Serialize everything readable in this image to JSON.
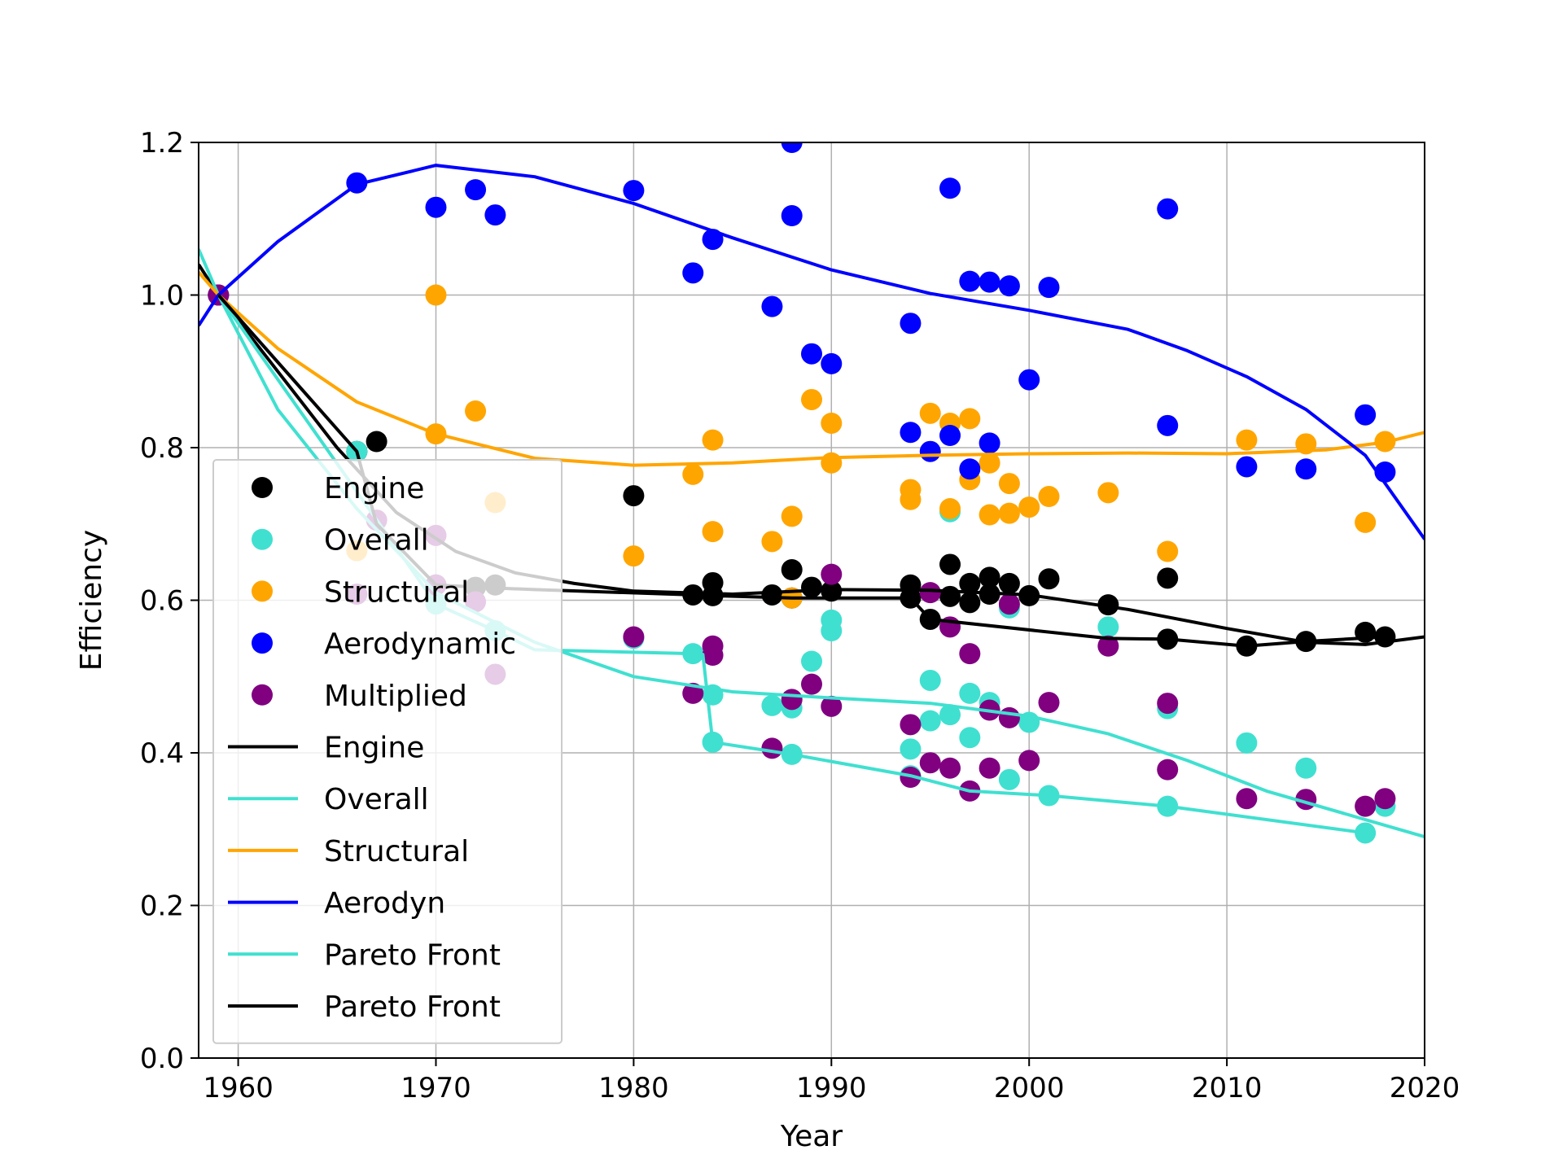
{
  "chart_data": {
    "type": "scatter",
    "title": "",
    "xlabel": "Year",
    "ylabel": "Efficiency",
    "xlim": [
      1958,
      2020
    ],
    "ylim": [
      0.0,
      1.2
    ],
    "xticks": [
      1960,
      1970,
      1980,
      1990,
      2000,
      2010,
      2020
    ],
    "yticks": [
      0.0,
      0.2,
      0.4,
      0.6,
      0.8,
      1.0,
      1.2
    ],
    "xtick_labels": [
      "1960",
      "1970",
      "1980",
      "1990",
      "2000",
      "2010",
      "2020"
    ],
    "ytick_labels": [
      "0.0",
      "0.2",
      "0.4",
      "0.6",
      "0.8",
      "1.0",
      "1.2"
    ],
    "grid": true,
    "legend_position": "lower-left",
    "scatter_series": [
      {
        "name": "Engine",
        "color": "#000000",
        "points": [
          [
            1959,
            1.0
          ],
          [
            1966,
            0.795
          ],
          [
            1967,
            0.808
          ],
          [
            1970,
            0.62
          ],
          [
            1972,
            0.617
          ],
          [
            1973,
            0.62
          ],
          [
            1980,
            0.737
          ],
          [
            1983,
            0.607
          ],
          [
            1984,
            0.623
          ],
          [
            1984,
            0.606
          ],
          [
            1987,
            0.607
          ],
          [
            1988,
            0.64
          ],
          [
            1988,
            0.603
          ],
          [
            1989,
            0.617
          ],
          [
            1990,
            0.612
          ],
          [
            1994,
            0.62
          ],
          [
            1994,
            0.603
          ],
          [
            1995,
            0.575
          ],
          [
            1996,
            0.647
          ],
          [
            1996,
            0.605
          ],
          [
            1997,
            0.622
          ],
          [
            1997,
            0.597
          ],
          [
            1998,
            0.63
          ],
          [
            1998,
            0.608
          ],
          [
            1999,
            0.622
          ],
          [
            2000,
            0.606
          ],
          [
            2001,
            0.628
          ],
          [
            2004,
            0.594
          ],
          [
            2007,
            0.629
          ],
          [
            2007,
            0.549
          ],
          [
            2011,
            0.54
          ],
          [
            2014,
            0.546
          ],
          [
            2017,
            0.558
          ],
          [
            2018,
            0.552
          ]
        ]
      },
      {
        "name": "Overall",
        "color": "#40e0d0",
        "points": [
          [
            1959,
            1.0
          ],
          [
            1966,
            0.795
          ],
          [
            1970,
            0.595
          ],
          [
            1973,
            0.56
          ],
          [
            1980,
            0.55
          ],
          [
            1983,
            0.53
          ],
          [
            1984,
            0.476
          ],
          [
            1984,
            0.414
          ],
          [
            1987,
            0.462
          ],
          [
            1988,
            0.459
          ],
          [
            1988,
            0.398
          ],
          [
            1989,
            0.52
          ],
          [
            1990,
            0.574
          ],
          [
            1990,
            0.56
          ],
          [
            1994,
            0.405
          ],
          [
            1994,
            0.37
          ],
          [
            1995,
            0.495
          ],
          [
            1995,
            0.442
          ],
          [
            1996,
            0.45
          ],
          [
            1996,
            0.716
          ],
          [
            1997,
            0.42
          ],
          [
            1997,
            0.478
          ],
          [
            1998,
            0.466
          ],
          [
            1999,
            0.59
          ],
          [
            1999,
            0.365
          ],
          [
            2000,
            0.44
          ],
          [
            2001,
            0.344
          ],
          [
            2004,
            0.565
          ],
          [
            2007,
            0.458
          ],
          [
            2007,
            0.33
          ],
          [
            2011,
            0.413
          ],
          [
            2014,
            0.38
          ],
          [
            2017,
            0.295
          ],
          [
            2018,
            0.33
          ]
        ]
      },
      {
        "name": "Structural",
        "color": "#ffa500",
        "points": [
          [
            1959,
            1.0
          ],
          [
            1966,
            0.665
          ],
          [
            1967,
            0.705
          ],
          [
            1970,
            1.0
          ],
          [
            1970,
            0.818
          ],
          [
            1972,
            0.848
          ],
          [
            1973,
            0.728
          ],
          [
            1980,
            0.658
          ],
          [
            1983,
            0.765
          ],
          [
            1984,
            0.81
          ],
          [
            1984,
            0.69
          ],
          [
            1987,
            0.677
          ],
          [
            1988,
            0.71
          ],
          [
            1988,
            0.603
          ],
          [
            1989,
            0.863
          ],
          [
            1990,
            0.832
          ],
          [
            1990,
            0.78
          ],
          [
            1994,
            0.745
          ],
          [
            1994,
            0.732
          ],
          [
            1995,
            0.845
          ],
          [
            1996,
            0.832
          ],
          [
            1996,
            0.72
          ],
          [
            1997,
            0.838
          ],
          [
            1997,
            0.758
          ],
          [
            1998,
            0.78
          ],
          [
            1998,
            0.712
          ],
          [
            1999,
            0.753
          ],
          [
            1999,
            0.714
          ],
          [
            2000,
            0.722
          ],
          [
            2001,
            0.736
          ],
          [
            2004,
            0.741
          ],
          [
            2007,
            0.664
          ],
          [
            2011,
            0.81
          ],
          [
            2014,
            0.805
          ],
          [
            2017,
            0.702
          ],
          [
            2018,
            0.808
          ]
        ]
      },
      {
        "name": "Aerodynamic",
        "color": "#0000ff",
        "points": [
          [
            1959,
            1.0
          ],
          [
            1966,
            1.147
          ],
          [
            1970,
            1.115
          ],
          [
            1972,
            1.138
          ],
          [
            1973,
            1.105
          ],
          [
            1980,
            1.137
          ],
          [
            1983,
            1.029
          ],
          [
            1984,
            1.073
          ],
          [
            1987,
            0.985
          ],
          [
            1988,
            1.2
          ],
          [
            1988,
            1.104
          ],
          [
            1989,
            0.923
          ],
          [
            1990,
            0.91
          ],
          [
            1994,
            0.963
          ],
          [
            1994,
            0.82
          ],
          [
            1995,
            0.795
          ],
          [
            1996,
            1.14
          ],
          [
            1996,
            0.816
          ],
          [
            1997,
            1.018
          ],
          [
            1997,
            0.772
          ],
          [
            1998,
            1.017
          ],
          [
            1998,
            0.806
          ],
          [
            1999,
            1.012
          ],
          [
            2000,
            0.889
          ],
          [
            2001,
            1.01
          ],
          [
            2007,
            1.113
          ],
          [
            2007,
            0.829
          ],
          [
            2011,
            0.775
          ],
          [
            2014,
            0.772
          ],
          [
            2017,
            0.843
          ],
          [
            2018,
            0.768
          ]
        ]
      },
      {
        "name": "Multiplied",
        "color": "#800080",
        "points": [
          [
            1959,
            1.0
          ],
          [
            1966,
            0.608
          ],
          [
            1967,
            0.705
          ],
          [
            1970,
            0.685
          ],
          [
            1970,
            0.62
          ],
          [
            1972,
            0.598
          ],
          [
            1973,
            0.503
          ],
          [
            1980,
            0.552
          ],
          [
            1983,
            0.478
          ],
          [
            1984,
            0.54
          ],
          [
            1984,
            0.528
          ],
          [
            1987,
            0.406
          ],
          [
            1988,
            0.47
          ],
          [
            1989,
            0.49
          ],
          [
            1990,
            0.634
          ],
          [
            1990,
            0.461
          ],
          [
            1994,
            0.437
          ],
          [
            1994,
            0.368
          ],
          [
            1995,
            0.61
          ],
          [
            1995,
            0.387
          ],
          [
            1996,
            0.565
          ],
          [
            1996,
            0.38
          ],
          [
            1997,
            0.53
          ],
          [
            1997,
            0.35
          ],
          [
            1998,
            0.456
          ],
          [
            1998,
            0.38
          ],
          [
            1999,
            0.595
          ],
          [
            1999,
            0.446
          ],
          [
            2000,
            0.39
          ],
          [
            2001,
            0.466
          ],
          [
            2004,
            0.54
          ],
          [
            2007,
            0.465
          ],
          [
            2007,
            0.378
          ],
          [
            2011,
            0.34
          ],
          [
            2014,
            0.339
          ],
          [
            2017,
            0.33
          ],
          [
            2018,
            0.34
          ]
        ]
      }
    ],
    "line_series": [
      {
        "name": "Engine",
        "color": "#000000",
        "points": [
          [
            1958,
            1.04
          ],
          [
            1959,
            1.0
          ],
          [
            1962,
            0.9
          ],
          [
            1965,
            0.8
          ],
          [
            1968,
            0.715
          ],
          [
            1971,
            0.664
          ],
          [
            1974,
            0.636
          ],
          [
            1977,
            0.622
          ],
          [
            1980,
            0.612
          ],
          [
            1985,
            0.608
          ],
          [
            1990,
            0.614
          ],
          [
            1995,
            0.613
          ],
          [
            2000,
            0.607
          ],
          [
            2005,
            0.588
          ],
          [
            2010,
            0.563
          ],
          [
            2014,
            0.545
          ],
          [
            2017,
            0.542
          ],
          [
            2020,
            0.552
          ]
        ]
      },
      {
        "name": "Overall",
        "color": "#40e0d0",
        "points": [
          [
            1958,
            1.06
          ],
          [
            1959,
            1.0
          ],
          [
            1962,
            0.85
          ],
          [
            1966,
            0.72
          ],
          [
            1970,
            0.61
          ],
          [
            1975,
            0.545
          ],
          [
            1980,
            0.5
          ],
          [
            1985,
            0.48
          ],
          [
            1990,
            0.472
          ],
          [
            1995,
            0.465
          ],
          [
            2000,
            0.448
          ],
          [
            2004,
            0.425
          ],
          [
            2008,
            0.39
          ],
          [
            2012,
            0.35
          ],
          [
            2016,
            0.32
          ],
          [
            2020,
            0.29
          ]
        ]
      },
      {
        "name": "Structural",
        "color": "#ffa500",
        "points": [
          [
            1958,
            1.03
          ],
          [
            1959,
            1.0
          ],
          [
            1962,
            0.93
          ],
          [
            1966,
            0.86
          ],
          [
            1970,
            0.818
          ],
          [
            1975,
            0.786
          ],
          [
            1980,
            0.777
          ],
          [
            1985,
            0.78
          ],
          [
            1990,
            0.787
          ],
          [
            1995,
            0.79
          ],
          [
            2000,
            0.792
          ],
          [
            2005,
            0.793
          ],
          [
            2010,
            0.792
          ],
          [
            2015,
            0.797
          ],
          [
            2018,
            0.807
          ],
          [
            2020,
            0.82
          ]
        ]
      },
      {
        "name": "Aerodyn",
        "color": "#0000ff",
        "points": [
          [
            1958,
            0.96
          ],
          [
            1959,
            1.0
          ],
          [
            1962,
            1.07
          ],
          [
            1966,
            1.145
          ],
          [
            1970,
            1.17
          ],
          [
            1975,
            1.155
          ],
          [
            1980,
            1.12
          ],
          [
            1985,
            1.075
          ],
          [
            1990,
            1.033
          ],
          [
            1995,
            1.002
          ],
          [
            2000,
            0.98
          ],
          [
            2005,
            0.955
          ],
          [
            2008,
            0.927
          ],
          [
            2011,
            0.893
          ],
          [
            2014,
            0.85
          ],
          [
            2017,
            0.79
          ],
          [
            2020,
            0.68
          ]
        ]
      },
      {
        "name": "Pareto Front",
        "color": "#40e0d0",
        "points": [
          [
            1959,
            1.0
          ],
          [
            1970,
            0.595
          ],
          [
            1973,
            0.56
          ],
          [
            1975,
            0.535
          ],
          [
            1983,
            0.53
          ],
          [
            1983.5,
            0.529
          ],
          [
            1984,
            0.414
          ],
          [
            1988,
            0.398
          ],
          [
            1994,
            0.37
          ],
          [
            1997,
            0.35
          ],
          [
            2001,
            0.344
          ],
          [
            2007,
            0.33
          ],
          [
            2017,
            0.295
          ]
        ]
      },
      {
        "name": "Pareto Front",
        "color": "#000000",
        "points": [
          [
            1959,
            1.0
          ],
          [
            1966,
            0.795
          ],
          [
            1967,
            0.7
          ],
          [
            1970,
            0.62
          ],
          [
            1973,
            0.616
          ],
          [
            1975,
            0.614
          ],
          [
            1983,
            0.607
          ],
          [
            1984,
            0.606
          ],
          [
            1988,
            0.603
          ],
          [
            1994,
            0.603
          ],
          [
            1995,
            0.575
          ],
          [
            2004,
            0.55
          ],
          [
            2007,
            0.549
          ],
          [
            2011,
            0.54
          ],
          [
            2014,
            0.546
          ],
          [
            2018,
            0.552
          ]
        ]
      }
    ],
    "legend_entries": [
      {
        "label": "Engine",
        "kind": "marker",
        "color": "#000000"
      },
      {
        "label": "Overall",
        "kind": "marker",
        "color": "#40e0d0"
      },
      {
        "label": "Structural",
        "kind": "marker",
        "color": "#ffa500"
      },
      {
        "label": "Aerodynamic",
        "kind": "marker",
        "color": "#0000ff"
      },
      {
        "label": "Multiplied",
        "kind": "marker",
        "color": "#800080"
      },
      {
        "label": "Engine",
        "kind": "line",
        "color": "#000000"
      },
      {
        "label": "Overall",
        "kind": "line",
        "color": "#40e0d0"
      },
      {
        "label": "Structural",
        "kind": "line",
        "color": "#ffa500"
      },
      {
        "label": "Aerodyn",
        "kind": "line",
        "color": "#0000ff"
      },
      {
        "label": "Pareto Front",
        "kind": "line",
        "color": "#40e0d0"
      },
      {
        "label": "Pareto Front",
        "kind": "line",
        "color": "#000000"
      }
    ]
  }
}
